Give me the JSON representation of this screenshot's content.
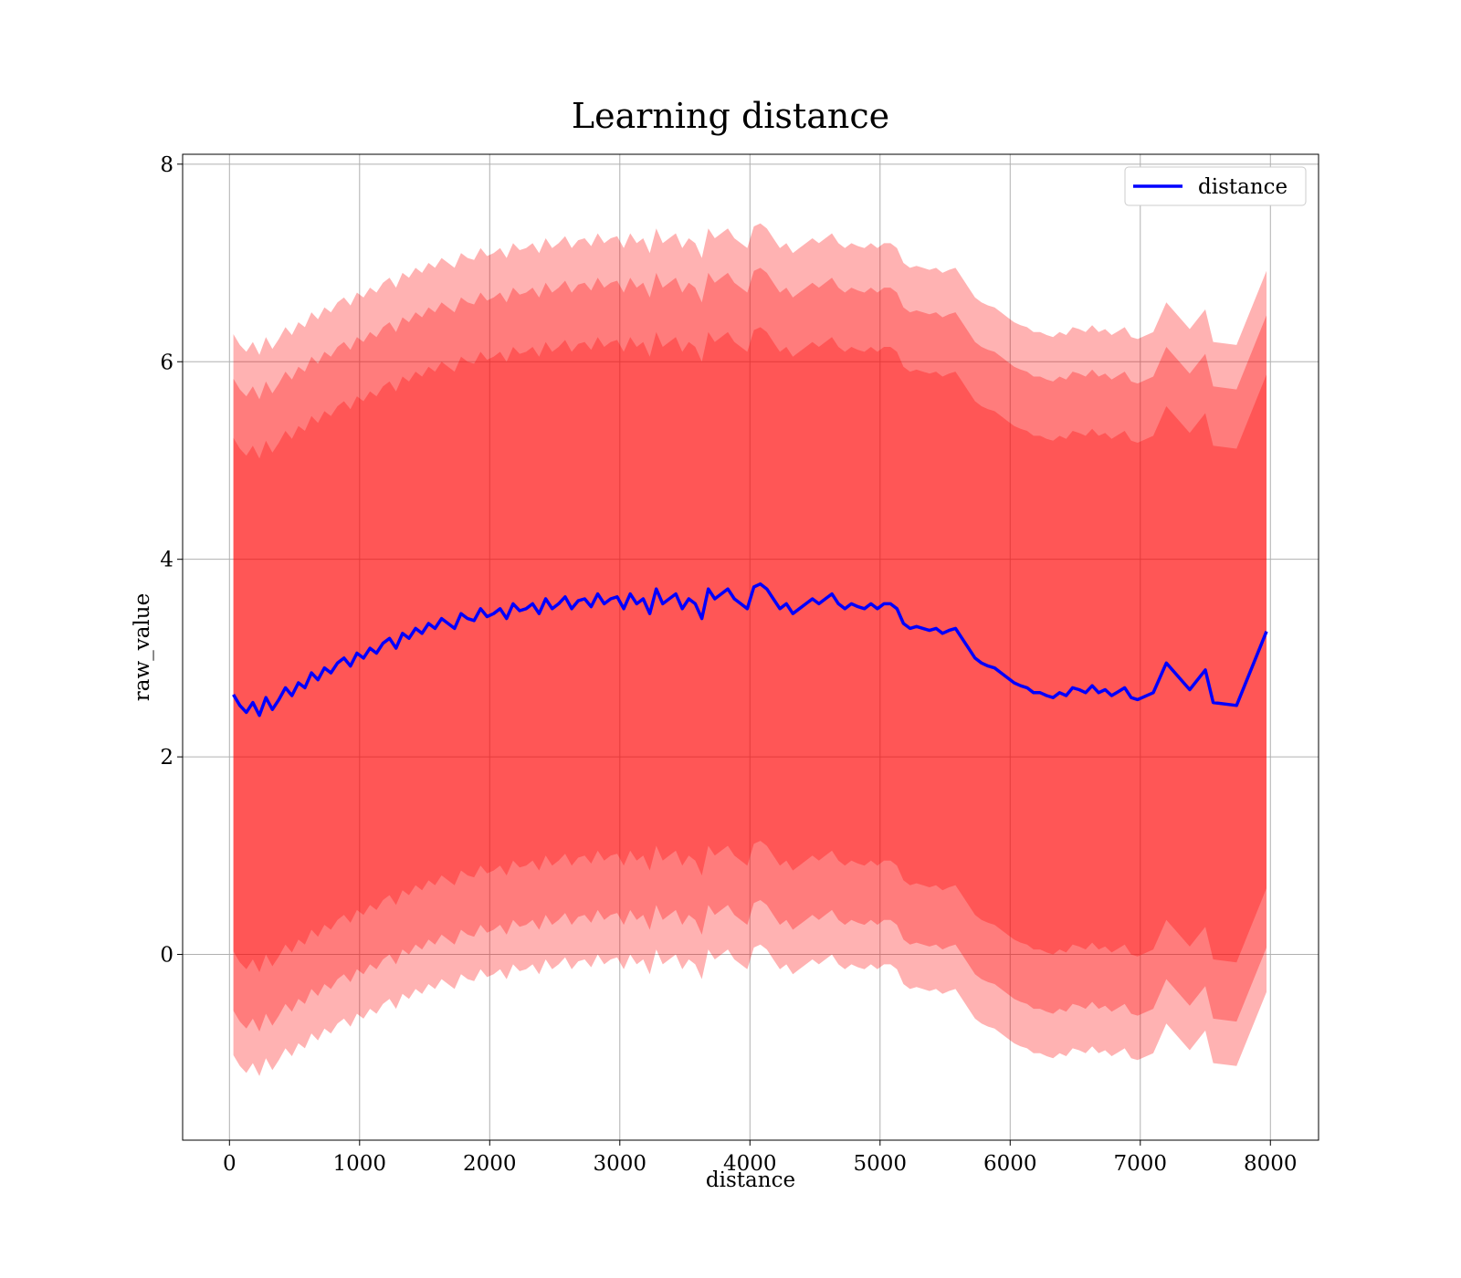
{
  "chart_data": {
    "type": "line",
    "title": "Learning distance",
    "xlabel": "distance",
    "ylabel": "raw_value",
    "xlim": [
      -360,
      8370
    ],
    "ylim": [
      -1.88,
      8.1
    ],
    "xticks": [
      0,
      1000,
      2000,
      3000,
      4000,
      5000,
      6000,
      7000,
      8000
    ],
    "yticks": [
      0,
      2,
      4,
      6,
      8
    ],
    "grid": true,
    "legend": {
      "placement": "top-right",
      "entries": [
        "distance"
      ]
    },
    "colors": {
      "line": "#0000ff",
      "band": "#ff0000",
      "band_opacity": 0.3,
      "grid": "#b0b0b0"
    },
    "band_half_widths": [
      3.65,
      3.2,
      2.6
    ],
    "series": [
      {
        "name": "distance",
        "x": [
          30,
          80,
          130,
          180,
          230,
          280,
          330,
          380,
          430,
          480,
          530,
          580,
          630,
          680,
          730,
          780,
          830,
          880,
          930,
          980,
          1030,
          1080,
          1130,
          1180,
          1230,
          1280,
          1330,
          1380,
          1430,
          1480,
          1530,
          1580,
          1630,
          1680,
          1730,
          1780,
          1830,
          1880,
          1930,
          1980,
          2030,
          2080,
          2130,
          2180,
          2230,
          2280,
          2330,
          2380,
          2430,
          2480,
          2530,
          2580,
          2630,
          2680,
          2730,
          2780,
          2830,
          2880,
          2930,
          2980,
          3030,
          3080,
          3130,
          3180,
          3230,
          3280,
          3330,
          3380,
          3430,
          3480,
          3530,
          3580,
          3630,
          3680,
          3730,
          3780,
          3830,
          3880,
          3930,
          3980,
          4030,
          4080,
          4130,
          4180,
          4230,
          4280,
          4330,
          4380,
          4430,
          4480,
          4530,
          4580,
          4630,
          4680,
          4730,
          4780,
          4830,
          4880,
          4930,
          4980,
          5030,
          5080,
          5130,
          5180,
          5230,
          5280,
          5330,
          5380,
          5430,
          5480,
          5530,
          5580,
          5630,
          5680,
          5730,
          5780,
          5830,
          5880,
          5930,
          5980,
          6030,
          6080,
          6130,
          6180,
          6230,
          6280,
          6330,
          6380,
          6430,
          6480,
          6530,
          6580,
          6630,
          6680,
          6730,
          6780,
          6830,
          6880,
          6930,
          6980,
          7100,
          7200,
          7380,
          7500,
          7560,
          7740,
          7970
        ],
        "y": [
          2.63,
          2.52,
          2.45,
          2.55,
          2.42,
          2.6,
          2.48,
          2.58,
          2.7,
          2.62,
          2.75,
          2.7,
          2.85,
          2.78,
          2.9,
          2.85,
          2.95,
          3.0,
          2.92,
          3.05,
          3.0,
          3.1,
          3.05,
          3.15,
          3.2,
          3.1,
          3.25,
          3.2,
          3.3,
          3.25,
          3.35,
          3.3,
          3.4,
          3.35,
          3.3,
          3.45,
          3.4,
          3.38,
          3.5,
          3.42,
          3.45,
          3.5,
          3.4,
          3.55,
          3.48,
          3.5,
          3.55,
          3.45,
          3.6,
          3.5,
          3.55,
          3.62,
          3.5,
          3.58,
          3.6,
          3.52,
          3.65,
          3.55,
          3.6,
          3.62,
          3.5,
          3.65,
          3.55,
          3.6,
          3.45,
          3.7,
          3.55,
          3.6,
          3.65,
          3.5,
          3.6,
          3.55,
          3.4,
          3.7,
          3.6,
          3.65,
          3.7,
          3.6,
          3.55,
          3.5,
          3.72,
          3.75,
          3.7,
          3.6,
          3.5,
          3.55,
          3.45,
          3.5,
          3.55,
          3.6,
          3.55,
          3.6,
          3.65,
          3.55,
          3.5,
          3.55,
          3.52,
          3.5,
          3.55,
          3.5,
          3.55,
          3.55,
          3.5,
          3.35,
          3.3,
          3.32,
          3.3,
          3.28,
          3.3,
          3.25,
          3.28,
          3.3,
          3.2,
          3.1,
          3.0,
          2.95,
          2.92,
          2.9,
          2.85,
          2.8,
          2.75,
          2.72,
          2.7,
          2.65,
          2.65,
          2.62,
          2.6,
          2.65,
          2.62,
          2.7,
          2.68,
          2.65,
          2.72,
          2.65,
          2.68,
          2.62,
          2.66,
          2.7,
          2.6,
          2.58,
          2.65,
          2.95,
          2.68,
          2.88,
          2.55,
          2.52,
          3.27
        ]
      }
    ]
  }
}
